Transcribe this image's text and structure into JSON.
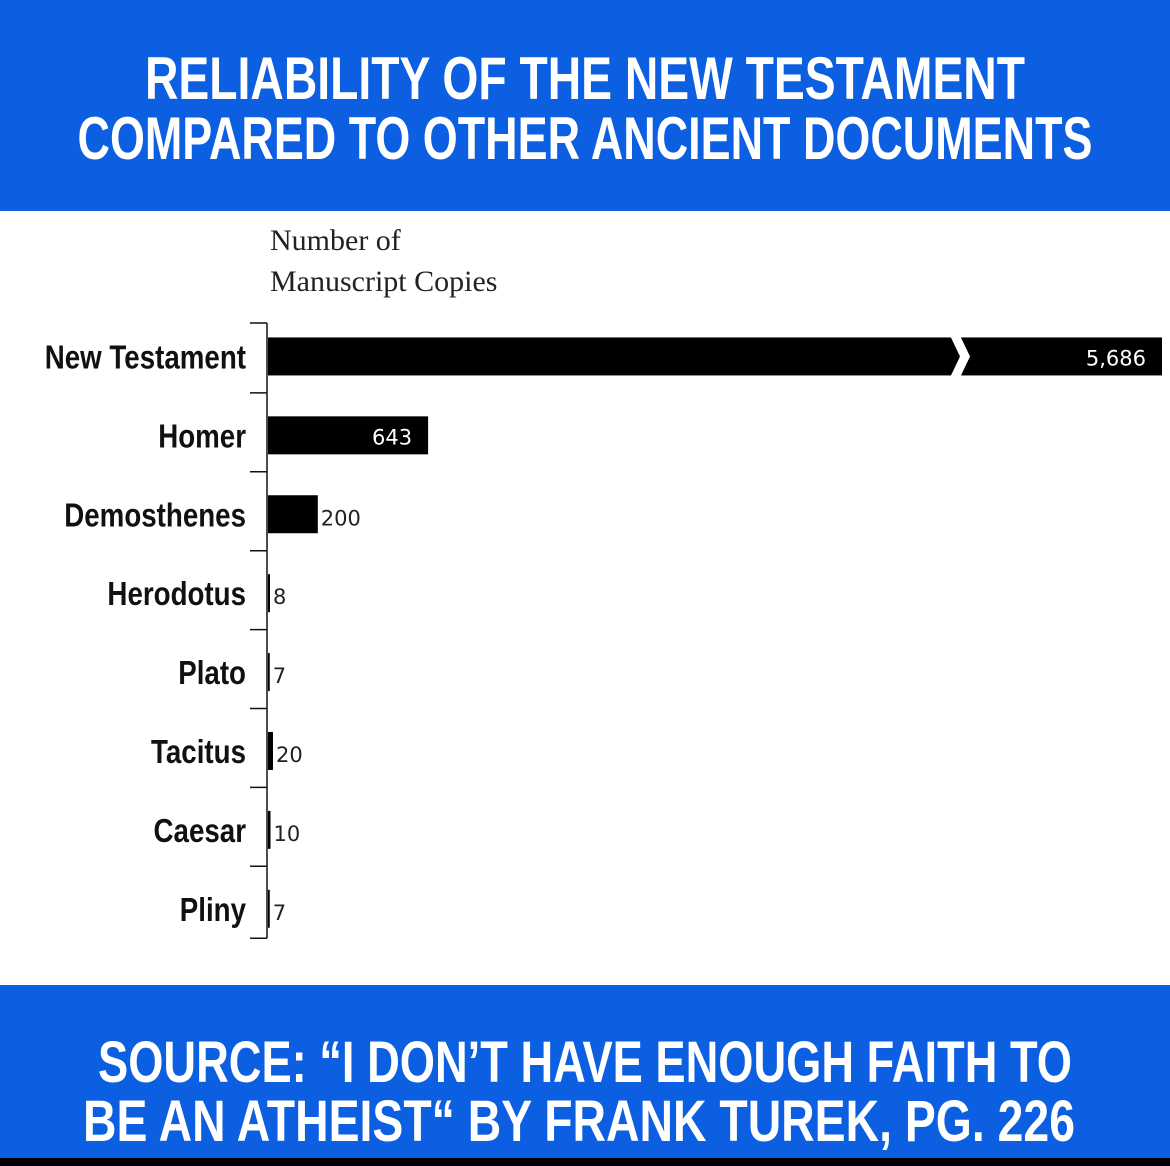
{
  "chart_data": {
    "type": "bar",
    "orientation": "horizontal",
    "title": [
      "RELIABILITY OF THE NEW TESTAMENT",
      "COMPARED TO OTHER ANCIENT DOCUMENTS"
    ],
    "x_label": [
      "Number of",
      "Manuscript Copies"
    ],
    "categories": [
      "New Testament",
      "Homer",
      "Demosthenes",
      "Herodotus",
      "Plato",
      "Tacitus",
      "Caesar",
      "Pliny"
    ],
    "values": [
      5686,
      643,
      200,
      8,
      7,
      20,
      10,
      7
    ],
    "value_labels": [
      "5,686",
      "643",
      "200",
      "8",
      "7",
      "20",
      "10",
      "7"
    ],
    "color": "#000000",
    "axis_break": true,
    "source": [
      "SOURCE: “I DON’T HAVE ENOUGH FAITH TO",
      "BE AN ATHEIST“ BY FRANK TUREK, PG. 226"
    ]
  }
}
